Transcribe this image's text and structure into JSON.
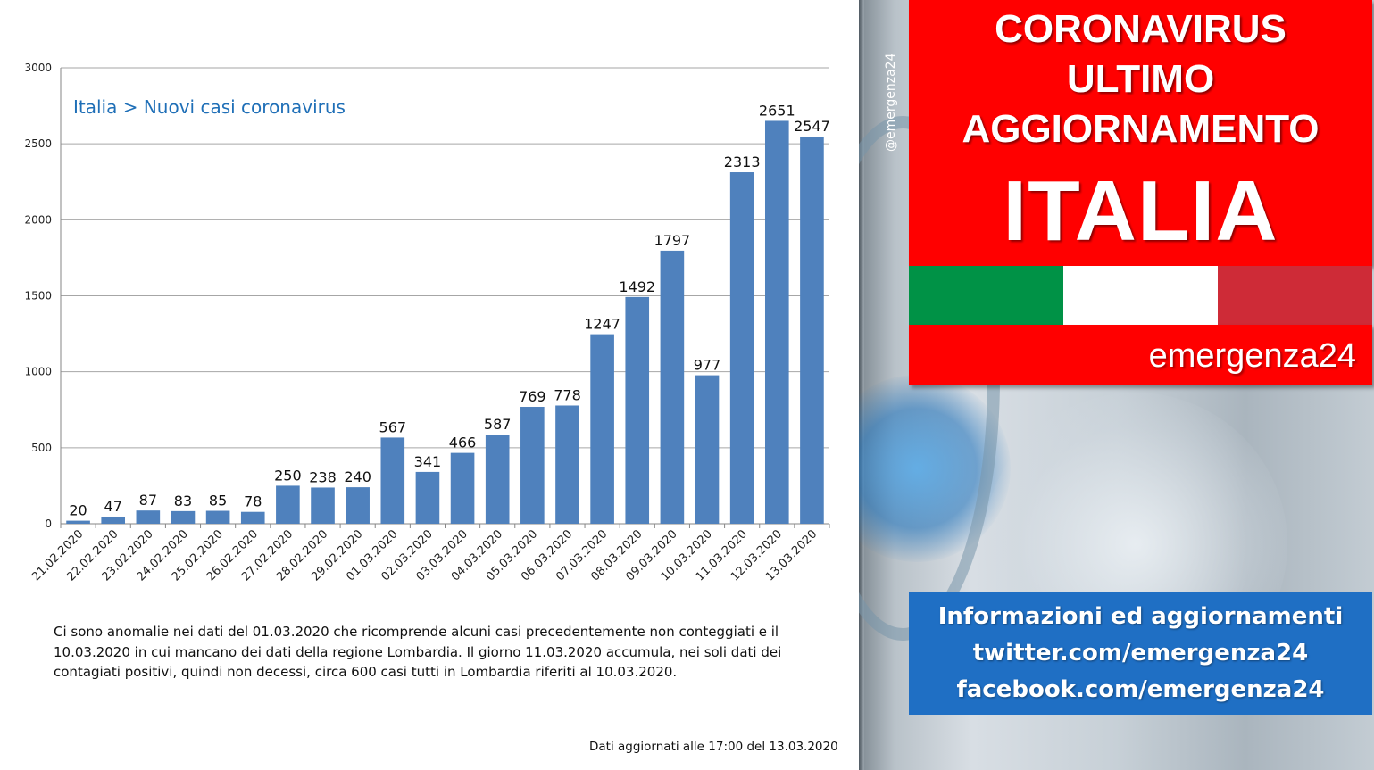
{
  "chart_data": {
    "type": "bar",
    "title": "Italia > Nuovi casi coronavirus",
    "categories": [
      "21.02.2020",
      "22.02.2020",
      "23.02.2020",
      "24.02.2020",
      "25.02.2020",
      "26.02.2020",
      "27.02.2020",
      "28.02.2020",
      "29.02.2020",
      "01.03.2020",
      "02.03.2020",
      "03.03.2020",
      "04.03.2020",
      "05.03.2020",
      "06.03.2020",
      "07.03.2020",
      "08.03.2020",
      "09.03.2020",
      "10.03.2020",
      "11.03.2020",
      "12.03.2020",
      "13.03.2020"
    ],
    "values": [
      20,
      47,
      87,
      83,
      85,
      78,
      250,
      238,
      240,
      567,
      341,
      466,
      587,
      769,
      778,
      1247,
      1492,
      1797,
      977,
      2313,
      2651,
      2547
    ],
    "ylim": [
      0,
      3000
    ],
    "yticks": [
      0,
      500,
      1000,
      1500,
      2000,
      2500,
      3000
    ],
    "grid": true,
    "bar_color": "#4f81bd"
  },
  "note": "Ci sono anomalie nei dati del 01.03.2020 che ricomprende alcuni casi precedentemente non conteggiati e il 10.03.2020 in cui mancano dei dati della regione Lombardia. Il giorno 11.03.2020 accumula, nei soli dati dei contagiati positivi, quindi non decessi, circa 600 casi tutti in Lombardia riferiti al 10.03.2020.",
  "updated": "Dati aggiornati alle 17:00 del 13.03.2020",
  "banner": {
    "line1": "CORONAVIRUS",
    "line2": "ULTIMO",
    "line3": "AGGIORNAMENTO",
    "line4": "ITALIA",
    "brand": "emergenza24",
    "handle": "@emergenza24",
    "flag_colors": [
      "#009246",
      "#ffffff",
      "#ce2b37"
    ],
    "accent_red": "#ff0000"
  },
  "info": {
    "line1": "Informazioni ed aggiornamenti",
    "line2": "twitter.com/emergenza24",
    "line3": "facebook.com/emergenza24",
    "box_color": "#1f6fc4"
  }
}
